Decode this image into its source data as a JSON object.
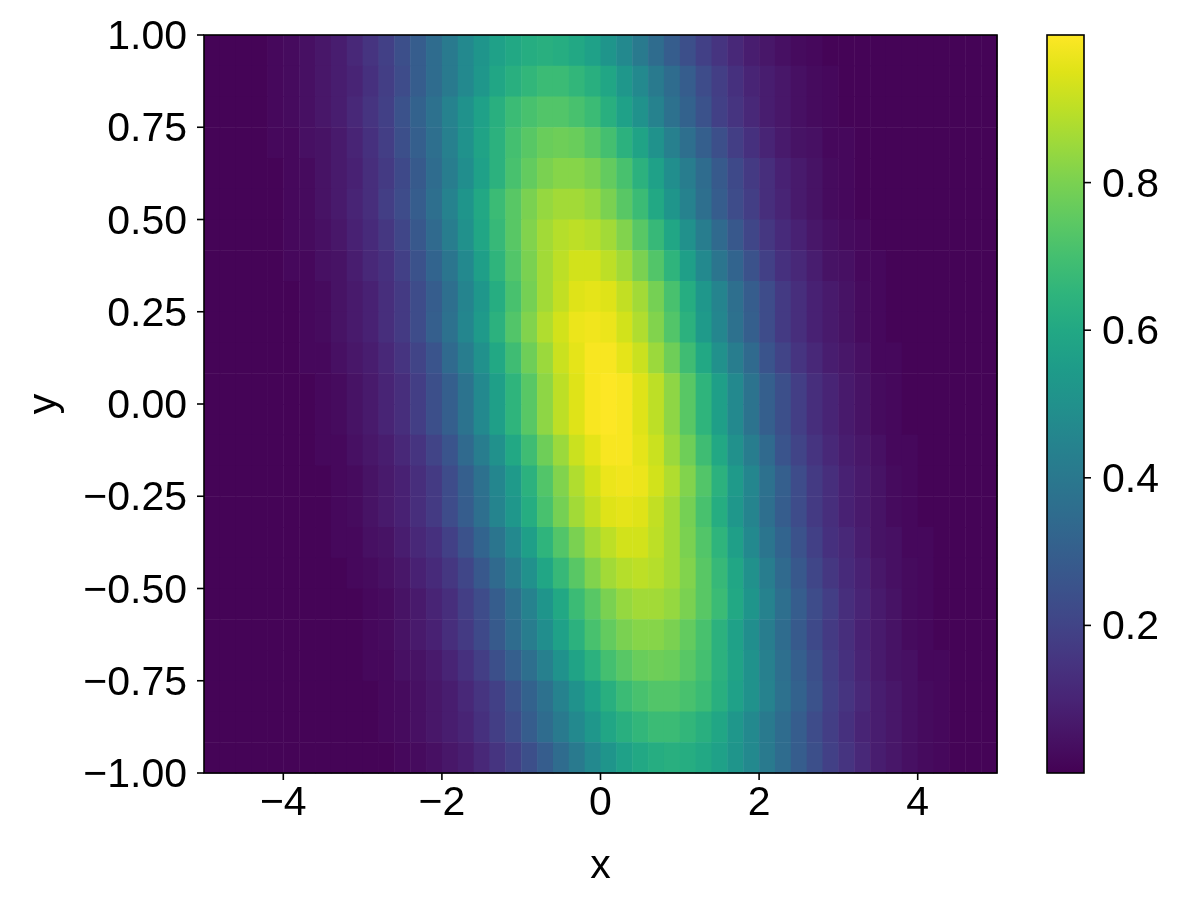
{
  "chart_data": {
    "type": "heatmap",
    "xlabel": "x",
    "ylabel": "y",
    "xlim": [
      -5,
      5
    ],
    "xticks": [
      {
        "value": -4,
        "label": "−4"
      },
      {
        "value": -2,
        "label": "−2"
      },
      0,
      2,
      4
    ],
    "ylim": [
      -1,
      1
    ],
    "yticks": [
      {
        "value": -1,
        "label": "−1.00"
      },
      {
        "value": -0.75,
        "label": "−0.75"
      },
      {
        "value": -0.5,
        "label": "−0.50"
      },
      {
        "value": -0.25,
        "label": "−0.25"
      },
      {
        "value": 0,
        "label": "0.00"
      },
      0.25,
      {
        "value": 0.5,
        "label": "0.50"
      },
      0.75,
      {
        "value": 1,
        "label": "1.00"
      }
    ],
    "clim": [
      0,
      1
    ],
    "cticks": [
      0.2,
      0.4,
      0.6,
      0.8
    ],
    "cells": [
      [
        0.01,
        0.01,
        0.01,
        0.01,
        0.02,
        0.03,
        0.04,
        0.06,
        0.08,
        0.11,
        0.15,
        0.19,
        0.24,
        0.29,
        0.35,
        0.41,
        0.47,
        0.52,
        0.57,
        0.6,
        0.62,
        0.63,
        0.62,
        0.6,
        0.57,
        0.52,
        0.47,
        0.41,
        0.35,
        0.29,
        0.24,
        0.19,
        0.15,
        0.11,
        0.08,
        0.06,
        0.04,
        0.03,
        0.02,
        0.01,
        0.01,
        0.01,
        0.01,
        0.01,
        0.01,
        0.01,
        0.01,
        0.01,
        0.01,
        0.01
      ],
      [
        0.01,
        0.01,
        0.01,
        0.01,
        0.02,
        0.03,
        0.04,
        0.06,
        0.08,
        0.1,
        0.14,
        0.18,
        0.23,
        0.29,
        0.35,
        0.41,
        0.47,
        0.53,
        0.59,
        0.63,
        0.66,
        0.68,
        0.68,
        0.66,
        0.63,
        0.59,
        0.53,
        0.47,
        0.41,
        0.35,
        0.29,
        0.23,
        0.18,
        0.14,
        0.1,
        0.08,
        0.06,
        0.04,
        0.03,
        0.02,
        0.01,
        0.01,
        0.01,
        0.01,
        0.01,
        0.01,
        0.01,
        0.01,
        0.01,
        0.01
      ],
      [
        0.01,
        0.01,
        0.01,
        0.01,
        0.02,
        0.03,
        0.04,
        0.06,
        0.08,
        0.11,
        0.15,
        0.19,
        0.25,
        0.31,
        0.37,
        0.44,
        0.51,
        0.57,
        0.63,
        0.68,
        0.71,
        0.73,
        0.73,
        0.71,
        0.68,
        0.63,
        0.57,
        0.51,
        0.44,
        0.37,
        0.31,
        0.25,
        0.19,
        0.15,
        0.11,
        0.08,
        0.06,
        0.04,
        0.03,
        0.02,
        0.01,
        0.01,
        0.01,
        0.01,
        0.01,
        0.01,
        0.01,
        0.01,
        0.01,
        0.01
      ],
      [
        0.01,
        0.01,
        0.01,
        0.01,
        0.02,
        0.02,
        0.04,
        0.05,
        0.07,
        0.1,
        0.14,
        0.18,
        0.24,
        0.3,
        0.36,
        0.43,
        0.51,
        0.58,
        0.64,
        0.7,
        0.74,
        0.77,
        0.78,
        0.77,
        0.74,
        0.7,
        0.64,
        0.58,
        0.51,
        0.43,
        0.36,
        0.3,
        0.24,
        0.18,
        0.14,
        0.1,
        0.07,
        0.05,
        0.04,
        0.02,
        0.02,
        0.01,
        0.01,
        0.01,
        0.01,
        0.01,
        0.01,
        0.01,
        0.01,
        0.01
      ],
      [
        0.01,
        0.01,
        0.01,
        0.01,
        0.01,
        0.02,
        0.03,
        0.05,
        0.07,
        0.09,
        0.13,
        0.17,
        0.22,
        0.28,
        0.35,
        0.42,
        0.49,
        0.57,
        0.64,
        0.71,
        0.76,
        0.8,
        0.82,
        0.82,
        0.8,
        0.76,
        0.71,
        0.64,
        0.57,
        0.49,
        0.42,
        0.35,
        0.28,
        0.22,
        0.17,
        0.13,
        0.09,
        0.07,
        0.05,
        0.03,
        0.02,
        0.01,
        0.01,
        0.01,
        0.01,
        0.01,
        0.01,
        0.01,
        0.01,
        0.01
      ],
      [
        0.01,
        0.01,
        0.01,
        0.01,
        0.01,
        0.02,
        0.03,
        0.05,
        0.07,
        0.1,
        0.13,
        0.18,
        0.23,
        0.29,
        0.36,
        0.44,
        0.52,
        0.6,
        0.68,
        0.74,
        0.8,
        0.84,
        0.86,
        0.86,
        0.84,
        0.8,
        0.74,
        0.68,
        0.6,
        0.52,
        0.44,
        0.36,
        0.29,
        0.23,
        0.18,
        0.13,
        0.1,
        0.07,
        0.05,
        0.03,
        0.02,
        0.01,
        0.01,
        0.01,
        0.01,
        0.01,
        0.01,
        0.01,
        0.01,
        0.01
      ],
      [
        0.01,
        0.01,
        0.01,
        0.01,
        0.01,
        0.02,
        0.03,
        0.04,
        0.06,
        0.09,
        0.12,
        0.16,
        0.21,
        0.27,
        0.34,
        0.42,
        0.5,
        0.59,
        0.67,
        0.74,
        0.81,
        0.86,
        0.89,
        0.9,
        0.89,
        0.86,
        0.81,
        0.74,
        0.67,
        0.59,
        0.5,
        0.42,
        0.34,
        0.27,
        0.21,
        0.16,
        0.12,
        0.09,
        0.06,
        0.04,
        0.03,
        0.02,
        0.01,
        0.01,
        0.01,
        0.01,
        0.01,
        0.01,
        0.01,
        0.01
      ],
      [
        0.01,
        0.01,
        0.01,
        0.01,
        0.01,
        0.02,
        0.02,
        0.04,
        0.05,
        0.08,
        0.11,
        0.14,
        0.19,
        0.25,
        0.32,
        0.39,
        0.47,
        0.56,
        0.65,
        0.73,
        0.8,
        0.86,
        0.9,
        0.93,
        0.93,
        0.9,
        0.86,
        0.8,
        0.73,
        0.65,
        0.56,
        0.47,
        0.39,
        0.32,
        0.25,
        0.19,
        0.14,
        0.11,
        0.08,
        0.05,
        0.04,
        0.02,
        0.02,
        0.01,
        0.01,
        0.01,
        0.01,
        0.01,
        0.01,
        0.01
      ],
      [
        0.01,
        0.01,
        0.01,
        0.01,
        0.01,
        0.01,
        0.02,
        0.03,
        0.05,
        0.07,
        0.09,
        0.13,
        0.17,
        0.23,
        0.29,
        0.36,
        0.45,
        0.53,
        0.62,
        0.71,
        0.79,
        0.86,
        0.91,
        0.95,
        0.96,
        0.95,
        0.91,
        0.86,
        0.79,
        0.71,
        0.62,
        0.53,
        0.45,
        0.36,
        0.29,
        0.23,
        0.17,
        0.13,
        0.09,
        0.07,
        0.05,
        0.03,
        0.02,
        0.01,
        0.01,
        0.01,
        0.01,
        0.01,
        0.01,
        0.01
      ],
      [
        0.01,
        0.01,
        0.01,
        0.01,
        0.01,
        0.01,
        0.02,
        0.03,
        0.05,
        0.07,
        0.09,
        0.13,
        0.17,
        0.23,
        0.3,
        0.37,
        0.46,
        0.54,
        0.64,
        0.73,
        0.81,
        0.88,
        0.93,
        0.97,
        0.98,
        0.97,
        0.93,
        0.88,
        0.81,
        0.73,
        0.64,
        0.54,
        0.46,
        0.37,
        0.3,
        0.23,
        0.17,
        0.13,
        0.09,
        0.07,
        0.05,
        0.03,
        0.02,
        0.01,
        0.01,
        0.01,
        0.01,
        0.01,
        0.01,
        0.01
      ],
      [
        0.01,
        0.01,
        0.01,
        0.01,
        0.01,
        0.01,
        0.02,
        0.02,
        0.04,
        0.06,
        0.08,
        0.11,
        0.15,
        0.2,
        0.26,
        0.34,
        0.42,
        0.5,
        0.6,
        0.69,
        0.78,
        0.85,
        0.92,
        0.96,
        0.99,
        0.99,
        0.96,
        0.92,
        0.85,
        0.78,
        0.69,
        0.6,
        0.5,
        0.42,
        0.34,
        0.26,
        0.2,
        0.15,
        0.11,
        0.08,
        0.06,
        0.04,
        0.02,
        0.02,
        0.01,
        0.01,
        0.01,
        0.01,
        0.01,
        0.01
      ],
      [
        0.01,
        0.01,
        0.01,
        0.01,
        0.01,
        0.01,
        0.01,
        0.02,
        0.03,
        0.05,
        0.07,
        0.1,
        0.13,
        0.18,
        0.24,
        0.3,
        0.38,
        0.47,
        0.56,
        0.65,
        0.74,
        0.83,
        0.9,
        0.95,
        0.99,
        1.0,
        0.99,
        0.95,
        0.9,
        0.83,
        0.74,
        0.65,
        0.56,
        0.47,
        0.38,
        0.3,
        0.24,
        0.18,
        0.13,
        0.1,
        0.07,
        0.05,
        0.03,
        0.02,
        0.01,
        0.01,
        0.01,
        0.01,
        0.01,
        0.01
      ],
      [
        0.01,
        0.01,
        0.01,
        0.01,
        0.01,
        0.01,
        0.01,
        0.02,
        0.03,
        0.05,
        0.07,
        0.1,
        0.13,
        0.18,
        0.24,
        0.3,
        0.38,
        0.47,
        0.56,
        0.65,
        0.74,
        0.83,
        0.9,
        0.95,
        0.99,
        1.0,
        0.99,
        0.95,
        0.9,
        0.83,
        0.74,
        0.65,
        0.56,
        0.47,
        0.38,
        0.3,
        0.24,
        0.18,
        0.13,
        0.1,
        0.07,
        0.05,
        0.03,
        0.02,
        0.01,
        0.01,
        0.01,
        0.01,
        0.01,
        0.01
      ],
      [
        0.01,
        0.01,
        0.01,
        0.01,
        0.01,
        0.01,
        0.01,
        0.02,
        0.02,
        0.04,
        0.06,
        0.08,
        0.11,
        0.15,
        0.2,
        0.26,
        0.34,
        0.42,
        0.5,
        0.6,
        0.69,
        0.78,
        0.85,
        0.92,
        0.96,
        0.99,
        0.99,
        0.96,
        0.92,
        0.85,
        0.78,
        0.69,
        0.6,
        0.5,
        0.42,
        0.34,
        0.26,
        0.2,
        0.15,
        0.11,
        0.08,
        0.06,
        0.04,
        0.02,
        0.02,
        0.01,
        0.01,
        0.01,
        0.01,
        0.01
      ],
      [
        0.01,
        0.01,
        0.01,
        0.01,
        0.01,
        0.01,
        0.01,
        0.01,
        0.02,
        0.03,
        0.05,
        0.07,
        0.09,
        0.13,
        0.17,
        0.23,
        0.3,
        0.37,
        0.46,
        0.54,
        0.64,
        0.73,
        0.81,
        0.88,
        0.93,
        0.97,
        0.98,
        0.97,
        0.93,
        0.88,
        0.81,
        0.73,
        0.64,
        0.54,
        0.46,
        0.37,
        0.3,
        0.23,
        0.17,
        0.13,
        0.09,
        0.07,
        0.05,
        0.03,
        0.02,
        0.01,
        0.01,
        0.01,
        0.01,
        0.01
      ],
      [
        0.01,
        0.01,
        0.01,
        0.01,
        0.01,
        0.01,
        0.01,
        0.01,
        0.02,
        0.03,
        0.05,
        0.07,
        0.09,
        0.13,
        0.17,
        0.23,
        0.29,
        0.36,
        0.45,
        0.53,
        0.62,
        0.71,
        0.79,
        0.86,
        0.91,
        0.95,
        0.96,
        0.95,
        0.91,
        0.86,
        0.79,
        0.71,
        0.62,
        0.53,
        0.45,
        0.36,
        0.29,
        0.23,
        0.17,
        0.13,
        0.09,
        0.07,
        0.05,
        0.03,
        0.02,
        0.01,
        0.01,
        0.01,
        0.01,
        0.01
      ],
      [
        0.01,
        0.01,
        0.01,
        0.01,
        0.01,
        0.01,
        0.01,
        0.01,
        0.02,
        0.02,
        0.04,
        0.05,
        0.08,
        0.11,
        0.14,
        0.19,
        0.25,
        0.32,
        0.39,
        0.47,
        0.56,
        0.65,
        0.73,
        0.8,
        0.86,
        0.9,
        0.93,
        0.93,
        0.9,
        0.86,
        0.8,
        0.73,
        0.65,
        0.56,
        0.47,
        0.39,
        0.32,
        0.25,
        0.19,
        0.14,
        0.11,
        0.08,
        0.05,
        0.04,
        0.02,
        0.02,
        0.01,
        0.01,
        0.01,
        0.01
      ],
      [
        0.01,
        0.01,
        0.01,
        0.01,
        0.01,
        0.01,
        0.01,
        0.01,
        0.01,
        0.02,
        0.03,
        0.04,
        0.06,
        0.09,
        0.12,
        0.16,
        0.21,
        0.27,
        0.34,
        0.42,
        0.5,
        0.59,
        0.67,
        0.74,
        0.81,
        0.86,
        0.89,
        0.9,
        0.89,
        0.86,
        0.81,
        0.74,
        0.67,
        0.59,
        0.5,
        0.42,
        0.34,
        0.27,
        0.21,
        0.16,
        0.12,
        0.09,
        0.06,
        0.04,
        0.03,
        0.02,
        0.01,
        0.01,
        0.01,
        0.01
      ],
      [
        0.01,
        0.01,
        0.01,
        0.01,
        0.01,
        0.01,
        0.01,
        0.01,
        0.01,
        0.01,
        0.02,
        0.03,
        0.05,
        0.07,
        0.1,
        0.13,
        0.18,
        0.23,
        0.29,
        0.36,
        0.44,
        0.52,
        0.6,
        0.68,
        0.74,
        0.8,
        0.84,
        0.86,
        0.86,
        0.84,
        0.8,
        0.74,
        0.68,
        0.6,
        0.52,
        0.44,
        0.36,
        0.29,
        0.23,
        0.18,
        0.13,
        0.1,
        0.07,
        0.05,
        0.03,
        0.02,
        0.01,
        0.01,
        0.01,
        0.01
      ],
      [
        0.01,
        0.01,
        0.01,
        0.01,
        0.01,
        0.01,
        0.01,
        0.01,
        0.01,
        0.01,
        0.02,
        0.03,
        0.05,
        0.07,
        0.09,
        0.13,
        0.17,
        0.22,
        0.28,
        0.35,
        0.42,
        0.49,
        0.57,
        0.64,
        0.71,
        0.76,
        0.8,
        0.82,
        0.82,
        0.8,
        0.76,
        0.71,
        0.64,
        0.57,
        0.49,
        0.42,
        0.35,
        0.28,
        0.22,
        0.17,
        0.13,
        0.09,
        0.07,
        0.05,
        0.03,
        0.02,
        0.01,
        0.01,
        0.01,
        0.01
      ],
      [
        0.01,
        0.01,
        0.01,
        0.01,
        0.01,
        0.01,
        0.01,
        0.01,
        0.01,
        0.01,
        0.02,
        0.02,
        0.04,
        0.05,
        0.07,
        0.1,
        0.14,
        0.18,
        0.24,
        0.3,
        0.36,
        0.43,
        0.51,
        0.58,
        0.64,
        0.7,
        0.74,
        0.77,
        0.78,
        0.77,
        0.74,
        0.7,
        0.64,
        0.58,
        0.51,
        0.43,
        0.36,
        0.3,
        0.24,
        0.18,
        0.14,
        0.1,
        0.07,
        0.05,
        0.04,
        0.02,
        0.02,
        0.01,
        0.01,
        0.01
      ],
      [
        0.01,
        0.01,
        0.01,
        0.01,
        0.01,
        0.01,
        0.01,
        0.01,
        0.01,
        0.01,
        0.01,
        0.02,
        0.03,
        0.04,
        0.06,
        0.08,
        0.11,
        0.15,
        0.19,
        0.25,
        0.31,
        0.37,
        0.44,
        0.51,
        0.57,
        0.63,
        0.68,
        0.71,
        0.73,
        0.73,
        0.71,
        0.68,
        0.63,
        0.57,
        0.51,
        0.44,
        0.37,
        0.31,
        0.25,
        0.19,
        0.15,
        0.11,
        0.08,
        0.06,
        0.04,
        0.03,
        0.02,
        0.01,
        0.01,
        0.01
      ],
      [
        0.01,
        0.01,
        0.01,
        0.01,
        0.01,
        0.01,
        0.01,
        0.01,
        0.01,
        0.01,
        0.01,
        0.02,
        0.03,
        0.04,
        0.06,
        0.08,
        0.1,
        0.14,
        0.18,
        0.23,
        0.29,
        0.35,
        0.41,
        0.47,
        0.53,
        0.59,
        0.63,
        0.66,
        0.68,
        0.68,
        0.66,
        0.63,
        0.59,
        0.53,
        0.47,
        0.41,
        0.35,
        0.29,
        0.23,
        0.18,
        0.14,
        0.1,
        0.08,
        0.06,
        0.04,
        0.03,
        0.02,
        0.01,
        0.01,
        0.01
      ],
      [
        0.01,
        0.01,
        0.01,
        0.01,
        0.01,
        0.01,
        0.01,
        0.01,
        0.01,
        0.01,
        0.01,
        0.01,
        0.02,
        0.03,
        0.04,
        0.06,
        0.08,
        0.11,
        0.15,
        0.19,
        0.24,
        0.29,
        0.35,
        0.41,
        0.47,
        0.52,
        0.57,
        0.6,
        0.62,
        0.63,
        0.62,
        0.6,
        0.57,
        0.52,
        0.47,
        0.41,
        0.35,
        0.29,
        0.24,
        0.19,
        0.15,
        0.11,
        0.08,
        0.06,
        0.04,
        0.03,
        0.02,
        0.01,
        0.01,
        0.01
      ]
    ]
  }
}
